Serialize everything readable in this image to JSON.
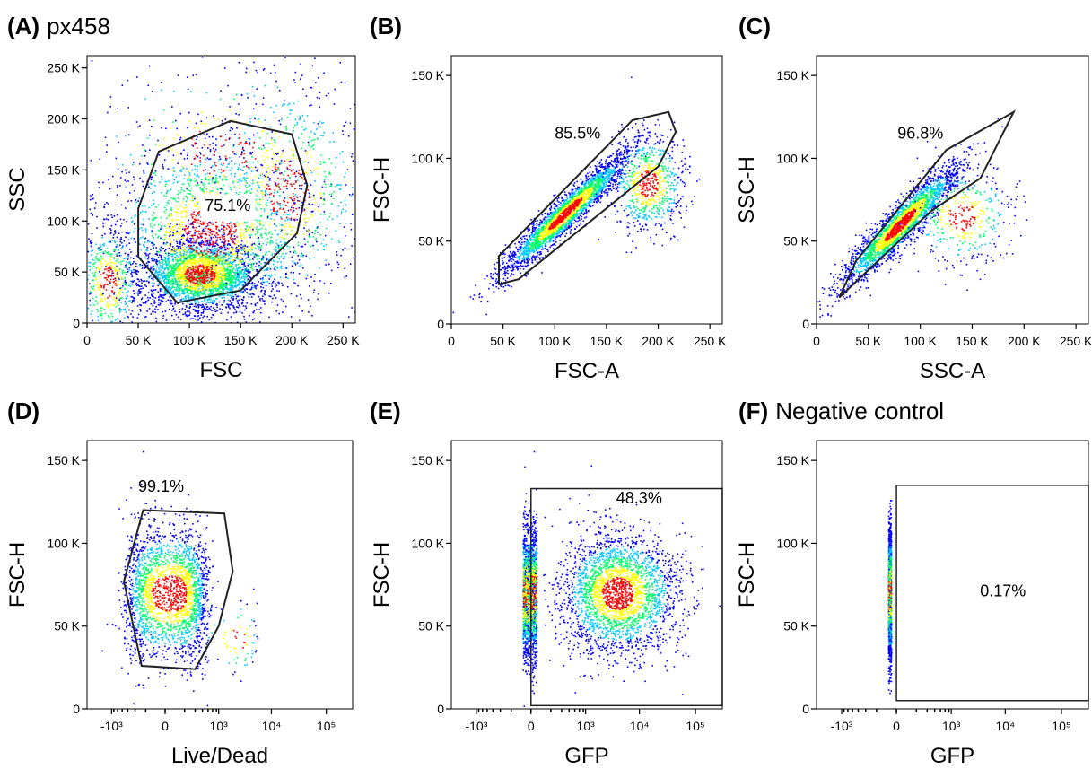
{
  "chart_data": [
    {
      "type": "scatter",
      "panel_letter": "(A)",
      "panel_title": "px458",
      "xlabel": "FSC",
      "ylabel": "SSC",
      "xscale": "linear",
      "xlim": [
        0,
        262000
      ],
      "ylim": [
        0,
        262000
      ],
      "x_ticks": [
        "0",
        "50 K",
        "100 K",
        "150 K",
        "200 K",
        "250 K"
      ],
      "x_tick_values": [
        0,
        50000,
        100000,
        150000,
        200000,
        250000
      ],
      "y_ticks": [
        "0",
        "50 K",
        "100 K",
        "150 K",
        "200 K",
        "250 K"
      ],
      "y_tick_values": [
        0,
        50000,
        100000,
        150000,
        200000,
        250000
      ],
      "gate_label": "75.1%",
      "gate_label_at": [
        115000,
        110000
      ],
      "gate_polygon": [
        [
          70000,
          168000
        ],
        [
          140000,
          198000
        ],
        [
          200000,
          185000
        ],
        [
          215000,
          135000
        ],
        [
          205000,
          88000
        ],
        [
          150000,
          32000
        ],
        [
          88000,
          20000
        ],
        [
          50000,
          65000
        ],
        [
          50000,
          112000
        ]
      ],
      "populations": [
        {
          "cx": 110000,
          "cy": 48000,
          "sx": 28000,
          "sy": 18000,
          "n": 2500
        },
        {
          "cx": 120000,
          "cy": 90000,
          "sx": 50000,
          "sy": 45000,
          "n": 1900
        },
        {
          "cx": 195000,
          "cy": 130000,
          "sx": 40000,
          "sy": 55000,
          "n": 700
        },
        {
          "cx": 20000,
          "cy": 40000,
          "sx": 15000,
          "sy": 30000,
          "n": 500
        },
        {
          "cx": 130000,
          "cy": 170000,
          "sx": 70000,
          "sy": 45000,
          "n": 300
        }
      ]
    },
    {
      "type": "scatter",
      "panel_letter": "(B)",
      "panel_title": "",
      "xlabel": "FSC-A",
      "ylabel": "FSC-H",
      "xscale": "linear",
      "xlim": [
        0,
        262000
      ],
      "ylim": [
        0,
        162000
      ],
      "x_ticks": [
        "0",
        "50 K",
        "100 K",
        "150 K",
        "200 K",
        "250 K"
      ],
      "x_tick_values": [
        0,
        50000,
        100000,
        150000,
        200000,
        250000
      ],
      "y_ticks": [
        "0",
        "50 K",
        "100 K",
        "150 K"
      ],
      "y_tick_values": [
        0,
        50000,
        100000,
        150000
      ],
      "gate_label": "85.5%",
      "gate_label_at": [
        100000,
        112000
      ],
      "gate_polygon": [
        [
          46000,
          41000
        ],
        [
          175000,
          123000
        ],
        [
          210000,
          128000
        ],
        [
          217000,
          116000
        ],
        [
          200000,
          95000
        ],
        [
          65000,
          27000
        ],
        [
          46000,
          24000
        ]
      ],
      "populations": [
        {
          "cx": 110000,
          "cy": 67000,
          "sx": 30000,
          "sy": 18000,
          "n": 2600,
          "corr": 0.95
        },
        {
          "cx": 190000,
          "cy": 85000,
          "sx": 18000,
          "sy": 15000,
          "n": 700
        }
      ]
    },
    {
      "type": "scatter",
      "panel_letter": "(C)",
      "panel_title": "",
      "xlabel": "SSC-A",
      "ylabel": "SSC-H",
      "xscale": "linear",
      "xlim": [
        0,
        262000
      ],
      "ylim": [
        0,
        162000
      ],
      "x_ticks": [
        "0",
        "50 K",
        "100 K",
        "150 K",
        "200 K",
        "250 K"
      ],
      "x_tick_values": [
        0,
        50000,
        100000,
        150000,
        200000,
        250000
      ],
      "y_ticks": [
        "0",
        "50 K",
        "100 K",
        "150 K"
      ],
      "y_tick_values": [
        0,
        50000,
        100000,
        150000
      ],
      "gate_label": "96.8%",
      "gate_label_at": [
        78000,
        112000
      ],
      "gate_polygon": [
        [
          22000,
          16000
        ],
        [
          38000,
          38000
        ],
        [
          125000,
          105000
        ],
        [
          190000,
          128000
        ],
        [
          158000,
          88000
        ],
        [
          110000,
          68000
        ]
      ],
      "populations": [
        {
          "cx": 80000,
          "cy": 60000,
          "sx": 28000,
          "sy": 18000,
          "n": 2400,
          "corr": 0.93
        },
        {
          "cx": 140000,
          "cy": 65000,
          "sx": 25000,
          "sy": 15000,
          "n": 400
        }
      ]
    },
    {
      "type": "scatter",
      "panel_letter": "(D)",
      "panel_title": "",
      "xlabel": "Live/Dead",
      "ylabel": "FSC-H",
      "xscale": "biexponential",
      "xlim": [
        -3000,
        300000
      ],
      "ylim": [
        0,
        162000
      ],
      "x_ticks": [
        "-10³",
        "0",
        "10³",
        "10⁴",
        "10⁵"
      ],
      "x_tick_values": [
        -1000,
        0,
        1000,
        10000,
        100000
      ],
      "y_ticks": [
        "0",
        "50 K",
        "100 K",
        "150 K"
      ],
      "y_tick_values": [
        0,
        50000,
        100000,
        150000
      ],
      "gate_label": "99.1%",
      "gate_label_at": [
        -250,
        131000
      ],
      "gate_polygon": [
        [
          -180,
          120000
        ],
        [
          1300,
          118000
        ],
        [
          1900,
          83000
        ],
        [
          1000,
          50000
        ],
        [
          300,
          24000
        ],
        [
          -200,
          26000
        ],
        [
          -550,
          77000
        ]
      ],
      "populations": [
        {
          "cx": 40,
          "cy": 70000,
          "sx": 250,
          "sy": 20000,
          "n": 2200
        },
        {
          "cx": 2500,
          "cy": 43000,
          "sx": 1500,
          "sy": 12000,
          "n": 80
        }
      ]
    },
    {
      "type": "scatter",
      "panel_letter": "(E)",
      "panel_title": "",
      "xlabel": "GFP",
      "ylabel": "FSC-H",
      "xscale": "biexponential",
      "xlim": [
        -3000,
        300000
      ],
      "ylim": [
        0,
        162000
      ],
      "x_ticks": [
        "-10³",
        "0",
        "10³",
        "10⁴",
        "10⁵"
      ],
      "x_tick_values": [
        -1000,
        0,
        1000,
        10000,
        100000
      ],
      "y_ticks": [
        "0",
        "50 K",
        "100 K",
        "150 K"
      ],
      "y_tick_values": [
        0,
        50000,
        100000,
        150000
      ],
      "gate_label": "48.3%",
      "gate_label_at": [
        3800,
        124000
      ],
      "gate_rect": [
        0,
        2000,
        300000,
        133000
      ],
      "populations": [
        {
          "cx": -10,
          "cy": 70000,
          "sx": 40,
          "sy": 20000,
          "n": 1800
        },
        {
          "cx": 4000,
          "cy": 70000,
          "sx": 25000,
          "sy": 18000,
          "n": 2600,
          "logx": true
        }
      ]
    },
    {
      "type": "scatter",
      "panel_letter": "(F)",
      "panel_title": "Negative control",
      "xlabel": "GFP",
      "ylabel": "FSC-H",
      "xscale": "biexponential",
      "xlim": [
        -3000,
        300000
      ],
      "ylim": [
        0,
        162000
      ],
      "x_ticks": [
        "-10³",
        "0",
        "10³",
        "10⁴",
        "10⁵"
      ],
      "x_tick_values": [
        -1000,
        0,
        1000,
        10000,
        100000
      ],
      "y_ticks": [
        "0",
        "50 K",
        "100 K",
        "150 K"
      ],
      "y_tick_values": [
        0,
        50000,
        100000,
        150000
      ],
      "gate_label": "0.17%",
      "gate_label_at": [
        3500,
        68000
      ],
      "gate_rect": [
        0,
        5000,
        300000,
        135000
      ],
      "populations": [
        {
          "cx": -40,
          "cy": 70000,
          "sx": 10,
          "sy": 20000,
          "n": 1500
        }
      ]
    }
  ],
  "colors": {
    "low": "#0000ff",
    "mid": "#00c8ff",
    "midhigh": "#00ff66",
    "high": "#ffff00",
    "peak": "#ff0000",
    "axis": "#000000",
    "gate": "#222222"
  }
}
